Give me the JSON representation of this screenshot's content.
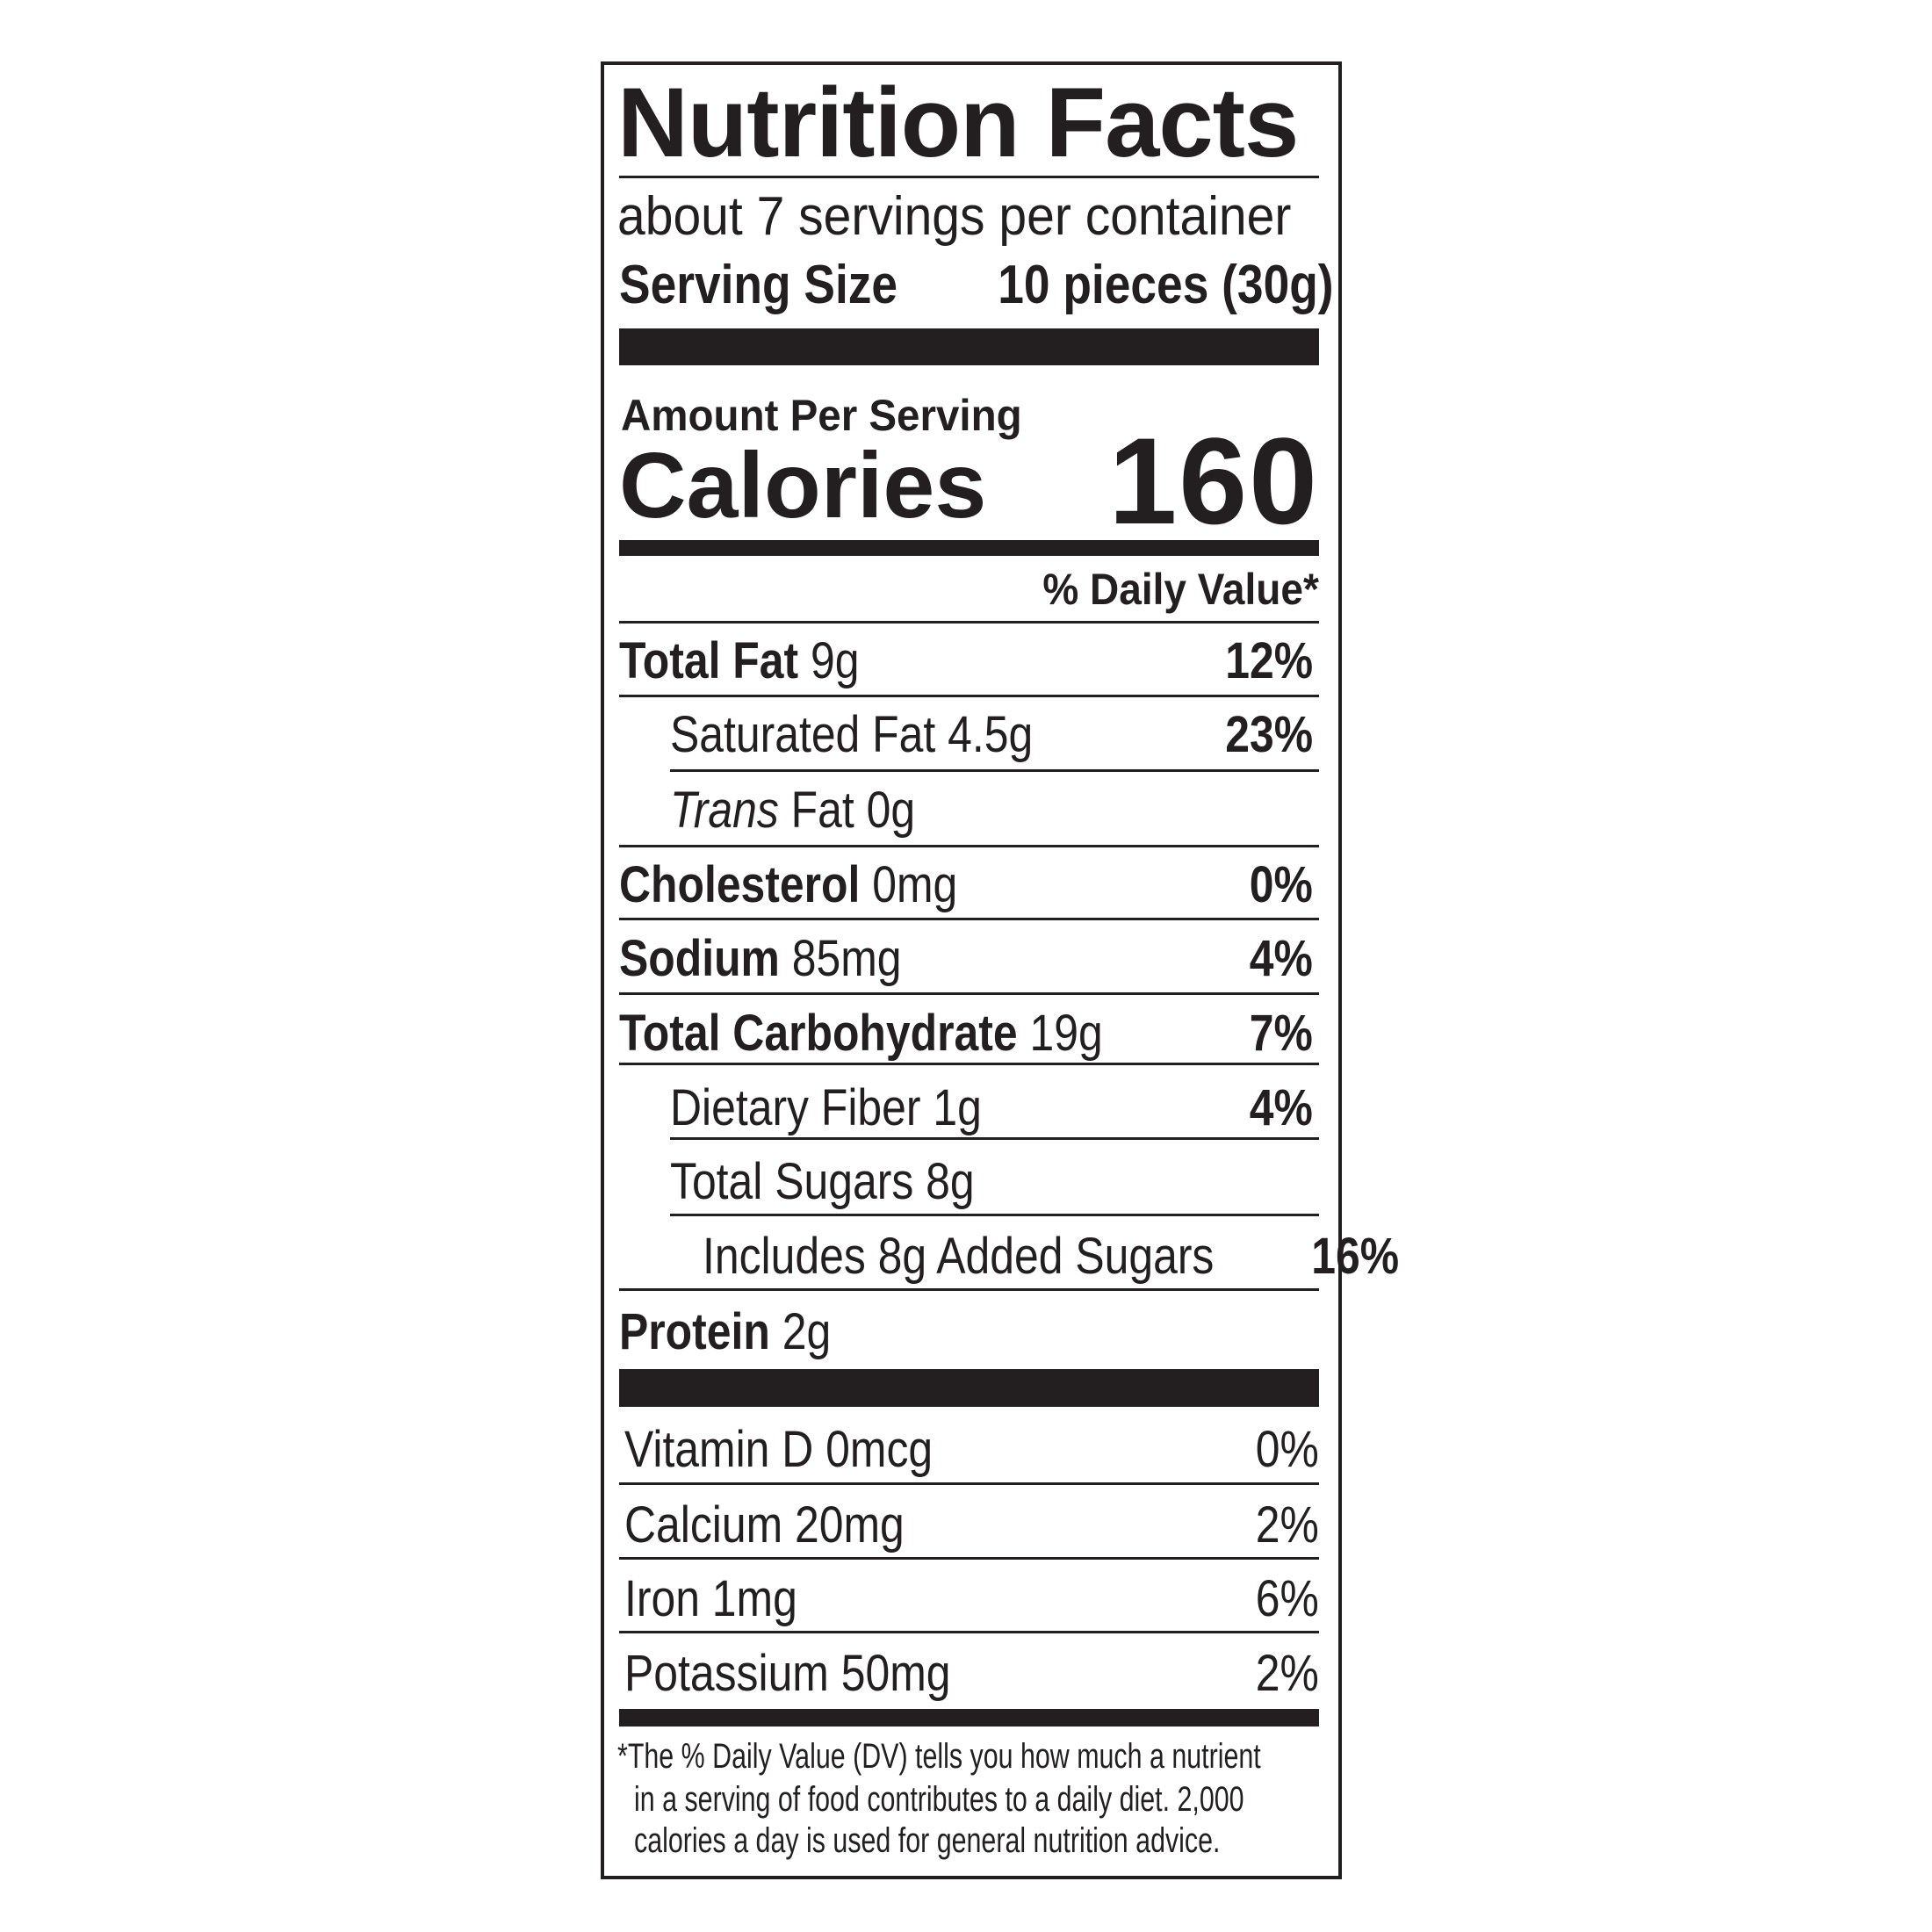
{
  "label": {
    "title": "Nutrition Facts",
    "servings_per_container": "about 7 servings per container",
    "serving_size_label": "Serving Size",
    "serving_size_value": "10 pieces (30g)",
    "amount_per_serving": "Amount Per Serving",
    "calories_label": "Calories",
    "calories_value": "160",
    "daily_value_header": "% Daily Value*",
    "nutrients": [
      {
        "name": "Total Fat",
        "amount": "9g",
        "dv": "12%"
      },
      {
        "name": "Saturated Fat",
        "amount": "4.5g",
        "dv": "23%"
      },
      {
        "name_italic": "Trans",
        "name": "Fat",
        "amount": "0g",
        "dv": ""
      },
      {
        "name": "Cholesterol",
        "amount": "0mg",
        "dv": "0%"
      },
      {
        "name": "Sodium",
        "amount": "85mg",
        "dv": "4%"
      },
      {
        "name": "Total Carbohydrate",
        "amount": "19g",
        "dv": "7%"
      },
      {
        "name": "Dietary Fiber",
        "amount": "1g",
        "dv": "4%"
      },
      {
        "name": "Total Sugars",
        "amount": "8g",
        "dv": ""
      },
      {
        "name": "Includes 8g Added Sugars",
        "amount": "",
        "dv": "16%"
      },
      {
        "name": "Protein",
        "amount": "2g",
        "dv": ""
      }
    ],
    "vitamins": [
      {
        "name": "Vitamin D 0mcg",
        "dv": "0%"
      },
      {
        "name": "Calcium 20mg",
        "dv": "2%"
      },
      {
        "name": "Iron 1mg",
        "dv": "6%"
      },
      {
        "name": "Potassium 50mg",
        "dv": "2%"
      }
    ],
    "footnote": [
      "*The % Daily Value (DV) tells you how much a nutrient",
      "in a serving of food contributes to a daily diet. 2,000",
      "calories a day is used for general nutrition advice."
    ]
  }
}
